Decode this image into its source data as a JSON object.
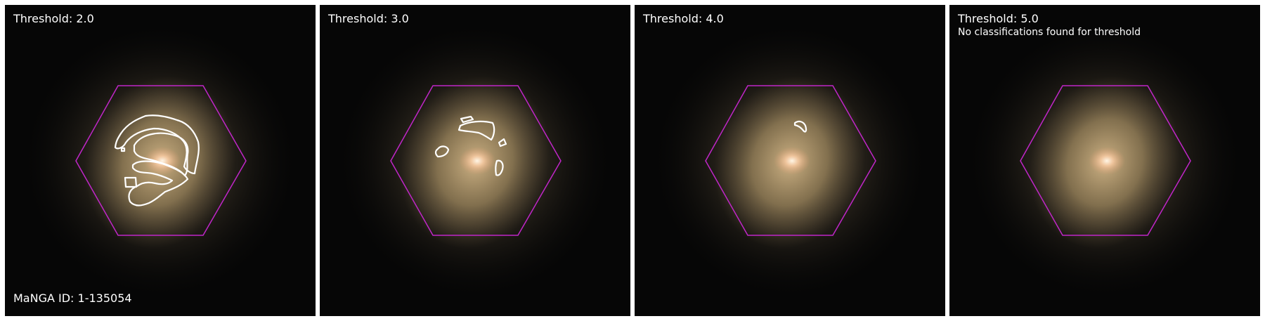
{
  "panels": [
    {
      "threshold_label": "Threshold: 2.0",
      "note": "",
      "id_label": "MaNGA ID: 1-135054",
      "contours": "t2"
    },
    {
      "threshold_label": "Threshold: 3.0",
      "note": "",
      "id_label": "",
      "contours": "t3"
    },
    {
      "threshold_label": "Threshold: 4.0",
      "note": "",
      "id_label": "",
      "contours": "t4"
    },
    {
      "threshold_label": "Threshold: 5.0",
      "note": "No classifications found for threshold",
      "id_label": "",
      "contours": "none"
    }
  ],
  "colors": {
    "background": "#060606",
    "hexagon": "#c026c8",
    "contour": "#ffffff",
    "label": "#ffffff",
    "galaxy_core": "#fff2dc",
    "galaxy_disk": "#b39a6a"
  }
}
